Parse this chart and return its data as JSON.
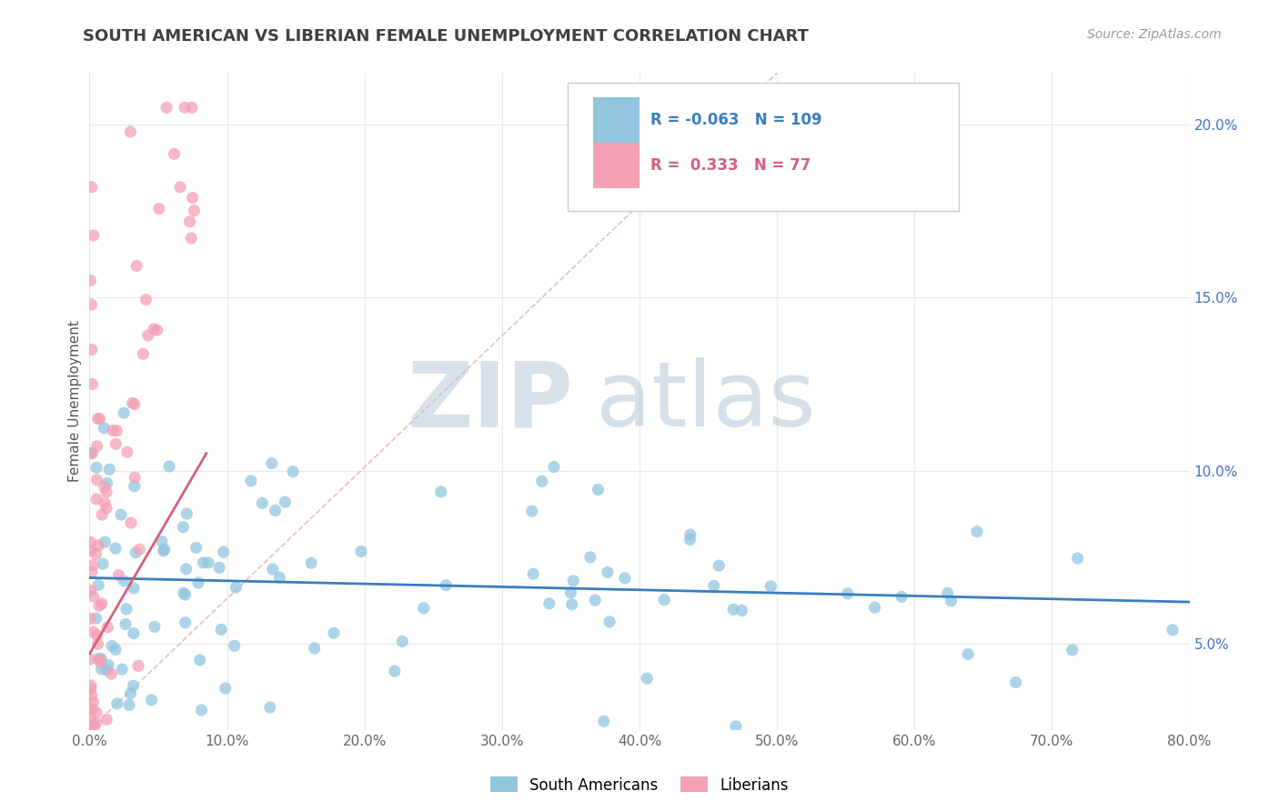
{
  "title": "SOUTH AMERICAN VS LIBERIAN FEMALE UNEMPLOYMENT CORRELATION CHART",
  "source": "Source: ZipAtlas.com",
  "ylabel": "Female Unemployment",
  "xlim": [
    0.0,
    0.8
  ],
  "ylim": [
    0.025,
    0.215
  ],
  "blue_color": "#92c5de",
  "pink_color": "#f4a0b5",
  "blue_line_color": "#3a7ebf",
  "pink_line_color": "#d4607a",
  "diag_color": "#e8b4bc",
  "blue_R": -0.063,
  "blue_N": 109,
  "pink_R": 0.333,
  "pink_N": 77,
  "blue_label": "South Americans",
  "pink_label": "Liberians",
  "background_color": "#ffffff",
  "grid_color": "#e8e8e8",
  "title_color": "#404040",
  "watermark_color": "#d4dde8",
  "right_axis_color": "#4472c4",
  "title_fontsize": 13,
  "source_fontsize": 10
}
